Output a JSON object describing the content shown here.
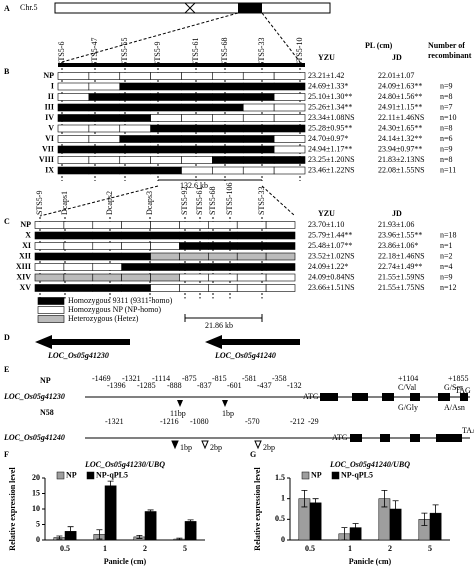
{
  "panel_labels": {
    "a": "A",
    "b": "B",
    "c": "C",
    "d": "D",
    "e": "E",
    "f": "F",
    "g": "G"
  },
  "panel_a": {
    "chromosome": "Chr.5"
  },
  "panel_b": {
    "markers": [
      "STS5-6",
      "STS5-47",
      "STS5-55",
      "STS5-9",
      "STS5-61",
      "STS5-68",
      "STS5-33",
      "STS5-10"
    ],
    "headers": {
      "pl": "PL (cm)",
      "yzu": "YZU",
      "jd": "JD",
      "number": "Number of",
      "number2": "recombinant"
    },
    "rows": [
      {
        "name": "NP",
        "yzu": "23.21±1.42",
        "jd": "22.01±1.07"
      },
      {
        "name": "I",
        "yzu": "24.69±1.33*",
        "jd": "24.09±1.63**",
        "n": "n=9"
      },
      {
        "name": "II",
        "yzu": "25.10±1.30**",
        "jd": "24.80±1.56**",
        "n": "n=8"
      },
      {
        "name": "III",
        "yzu": "25.26±1.34**",
        "jd": "24.91±1.15**",
        "n": "n=7"
      },
      {
        "name": "IV",
        "yzu": "23.34±1.08NS",
        "jd": "22.11±1.46NS",
        "n": "n=10"
      },
      {
        "name": "V",
        "yzu": "25.28±0.95**",
        "jd": "24.30±1.65**",
        "n": "n=8"
      },
      {
        "name": "VI",
        "yzu": "24.70±0.97*",
        "jd": "24.14±1.32**",
        "n": "n=6"
      },
      {
        "name": "VII",
        "yzu": "24.94±1.17**",
        "jd": "23.94±0.97**",
        "n": "n=9"
      },
      {
        "name": "VIII",
        "yzu": "23.25±1.20NS",
        "jd": "21.83±2.13NS",
        "n": "n=8"
      },
      {
        "name": "IX",
        "yzu": "23.46±1.22NS",
        "jd": "22.08±1.55NS",
        "n": "n=11"
      }
    ],
    "interval": "132.6 kb"
  },
  "panel_c": {
    "markers": [
      "STS5-9",
      "Dcaps1",
      "Dcaps2",
      "Dcaps3",
      "STS5-92",
      "STS5-61",
      "STS5-68",
      "STS5-106",
      "STS5-33"
    ],
    "headers": {
      "yzu": "YZU",
      "jd": "JD"
    },
    "rows": [
      {
        "name": "NP",
        "yzu": "23.70±1.10",
        "jd": "21.93±1.06"
      },
      {
        "name": "X",
        "yzu": "25.79±1.44**",
        "jd": "23.96±1.55**",
        "n": "n=18"
      },
      {
        "name": "XI",
        "yzu": "25.48±1.07**",
        "jd": "23.86±1.06*",
        "n": "n=1"
      },
      {
        "name": "XII",
        "yzu": "23.52±1.02NS",
        "jd": "22.18±1.46NS",
        "n": "n=2"
      },
      {
        "name": "XIII",
        "yzu": "24.09±1.22*",
        "jd": "22.74±1.49**",
        "n": "n=4"
      },
      {
        "name": "XIV",
        "yzu": "24.09±0.84NS",
        "jd": "21.55±1.59NS",
        "n": "n=9"
      },
      {
        "name": "XV",
        "yzu": "23.66±1.51NS",
        "jd": "21.55±1.75NS",
        "n": "n=12"
      }
    ],
    "legend": [
      "Homozygous 9311 (9311-homo)",
      "Homozygous NP (NP-homo)",
      "Heterozygous (Hetez)"
    ],
    "interval": "21.86 kb"
  },
  "panel_d": {
    "genes": [
      "LOC_Os05g41230",
      "LOC_Os05g41240"
    ]
  },
  "panel_e": {
    "gene1": {
      "name": "LOC_Os05g41230",
      "np": "NP",
      "n58": "N58",
      "positions": [
        "-1469",
        "-1396",
        "-1321",
        "-1285",
        "-1114",
        "-888",
        "-875",
        "-837",
        "-815",
        "-601",
        "-581",
        "-437",
        "-358",
        "-132"
      ],
      "start": "ATG",
      "stop": "TAG",
      "snp1": "+1104",
      "snp2": "+1855",
      "np1": "C/Val",
      "n581": "G/Gly",
      "np2": "G/Ser",
      "n582": "A/Asn",
      "indels": [
        "11bp",
        "1bp"
      ]
    },
    "gene2": {
      "name": "LOC_Os05g41240",
      "positions": [
        "-1321",
        "-1216",
        "-1080",
        "-570",
        "-212",
        "-29"
      ],
      "start": "ATG",
      "stop": "TAA",
      "indels": [
        "1bp",
        "2bp",
        "2bp"
      ]
    }
  },
  "chart_data": [
    {
      "type": "bar",
      "title": "LOC_Os05g41230/UBQ",
      "ylabel": "Relative expression level",
      "xlabel": "Panicle (cm)",
      "categories": [
        "0.5",
        "1",
        "2",
        "5"
      ],
      "series": [
        {
          "name": "NP",
          "color": "#9e9e9e",
          "values": [
            0.8,
            1.8,
            1,
            0.3
          ],
          "errors": [
            0.5,
            1.5,
            0.5,
            0.3
          ]
        },
        {
          "name": "NP-qPL5",
          "color": "#000000",
          "values": [
            2.8,
            17.5,
            9.2,
            6
          ],
          "errors": [
            1.5,
            1.5,
            0.5,
            0.5
          ]
        }
      ],
      "ylim": [
        0,
        20
      ],
      "yticks": [
        0,
        5,
        10,
        15,
        20
      ]
    },
    {
      "type": "bar",
      "title": "LOC_Os05g41240/UBQ",
      "ylabel": "Relative expression level",
      "xlabel": "Panicle (cm)",
      "categories": [
        "0.5",
        "1",
        "2",
        "5"
      ],
      "series": [
        {
          "name": "NP",
          "color": "#9e9e9e",
          "values": [
            1,
            0.15,
            1,
            0.5
          ],
          "errors": [
            0.2,
            0.15,
            0.2,
            0.15
          ]
        },
        {
          "name": "NP-qPL5",
          "color": "#000000",
          "values": [
            0.9,
            0.3,
            0.75,
            0.65
          ],
          "errors": [
            0.1,
            0.1,
            0.2,
            0.2
          ]
        }
      ],
      "ylim": [
        0,
        1.5
      ],
      "yticks": [
        0,
        0.5,
        1,
        1.5
      ]
    }
  ]
}
